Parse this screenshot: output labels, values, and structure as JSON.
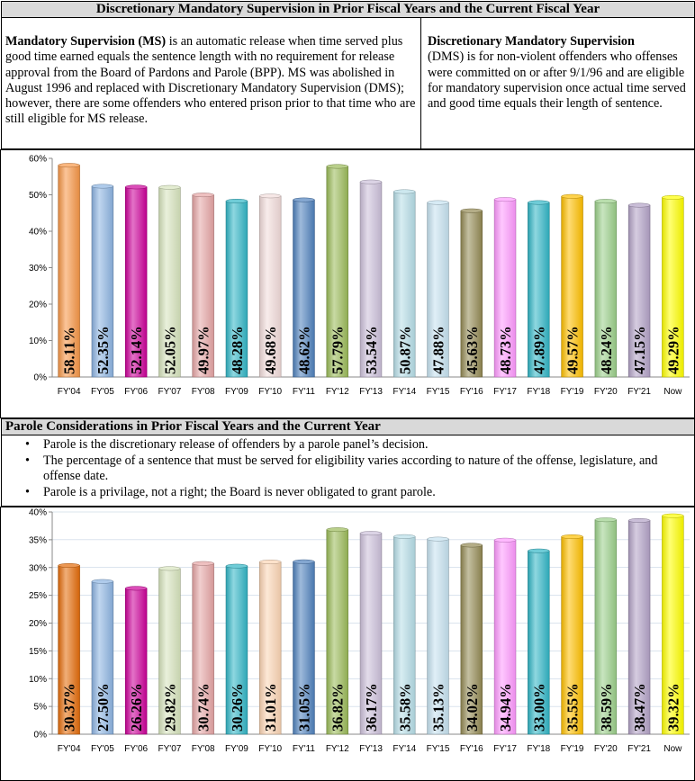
{
  "dms_section": {
    "title": "Discretionary Mandatory Supervision in Prior Fiscal Years and the Current Fiscal Year",
    "ms_term": "Mandatory Supervision (MS)",
    "ms_text": " is an automatic release when time served plus good time earned equals the sentence length with no requirement for release approval from the Board of Pardons and Parole (BPP).  MS was abolished in August 1996 and replaced with Discretionary Mandatory Supervision (DMS); however, there are some offenders who entered prison prior to that time who are still eligible for MS release.",
    "dms_term": "Discretionary Mandatory Supervision",
    "dms_text": "(DMS) is for non-violent offenders who offenses were committed on or after 9/1/96 and are eligible for mandatory supervision once actual time served and good time equals their length of sentence."
  },
  "parole_section": {
    "title": "Parole Considerations in Prior Fiscal Years and the Current Year",
    "bullets": [
      "Parole is the discretionary release of offenders by a parole panel’s decision.",
      "The percentage of a sentence that must be served for eligibility varies according to nature of the offense, legislature, and offense date.",
      "Parole is a privilage, not a right; the Board is never obligated to grant parole."
    ]
  },
  "chart_data": [
    {
      "type": "bar",
      "categories": [
        "FY'04",
        "FY'05",
        "FY'06",
        "FY'07",
        "FY'08",
        "FY'09",
        "FY'10",
        "FY'11",
        "FY'12",
        "FY'13",
        "FY'14",
        "FY'15",
        "FY'16",
        "FY'17",
        "FY'18",
        "FY'19",
        "FY'20",
        "FY'21",
        "Now"
      ],
      "values": [
        58.11,
        52.35,
        52.14,
        52.05,
        49.97,
        48.28,
        49.68,
        48.62,
        57.79,
        53.54,
        50.87,
        47.88,
        45.63,
        48.73,
        47.89,
        49.57,
        48.24,
        47.15,
        49.29
      ],
      "data_labels": [
        "58.11%",
        "52.35%",
        "52.14%",
        "52.05%",
        "49.97%",
        "48.28%",
        "49.68%",
        "48.62%",
        "57.79%",
        "53.54%",
        "50.87%",
        "47.88%",
        "45.63%",
        "48.73%",
        "47.89%",
        "49.57%",
        "48.24%",
        "47.15%",
        "49.29%"
      ],
      "y_ticks": [
        "0%",
        "10%",
        "20%",
        "30%",
        "40%",
        "50%",
        "60%"
      ],
      "ylim": [
        0,
        60
      ],
      "y_step": 10,
      "grid": false,
      "colors": [
        "#f79646",
        "#8db4e2",
        "#cc0099",
        "#d7e4bd",
        "#e6a5a5",
        "#31b6c6",
        "#f2dcdb",
        "#4f81bd",
        "#9bbb59",
        "#ccc0da",
        "#b7dee8",
        "#c6e2f0",
        "#948a54",
        "#ff99ff",
        "#31b6c6",
        "#ffc000",
        "#9bd08a",
        "#b3a2c7",
        "#ffff00"
      ]
    },
    {
      "type": "bar",
      "categories": [
        "FY'04",
        "FY'05",
        "FY'06",
        "FY'07",
        "FY'08",
        "FY'09",
        "FY'10",
        "FY'11",
        "FY'12",
        "FY'13",
        "FY'14",
        "FY'15",
        "FY'16",
        "FY'17",
        "FY'18",
        "FY'19",
        "FY'20",
        "FY'21",
        "Now"
      ],
      "values": [
        30.37,
        27.5,
        26.26,
        29.82,
        30.74,
        30.26,
        31.01,
        31.05,
        36.82,
        36.17,
        35.58,
        35.13,
        34.02,
        34.94,
        33.0,
        35.55,
        38.59,
        38.47,
        39.32
      ],
      "data_labels": [
        "30.37%",
        "27.50%",
        "26.26%",
        "29.82%",
        "30.74%",
        "30.26%",
        "31.01%",
        "31.05%",
        "36.82%",
        "36.17%",
        "35.58%",
        "35.13%",
        "34.02%",
        "34.94%",
        "33.00%",
        "35.55%",
        "38.59%",
        "38.47%",
        "39.32%"
      ],
      "y_ticks": [
        "0%",
        "5%",
        "10%",
        "15%",
        "20%",
        "25%",
        "30%",
        "35%",
        "40%"
      ],
      "ylim": [
        0,
        40
      ],
      "y_step": 5,
      "grid": true,
      "colors": [
        "#e46c0a",
        "#8db4e2",
        "#cc0099",
        "#d7e4bd",
        "#e6a5a5",
        "#31b6c6",
        "#fcd5b4",
        "#4f81bd",
        "#9bbb59",
        "#ccc0da",
        "#b7dee8",
        "#c6e2f0",
        "#948a54",
        "#ff99ff",
        "#31b6c6",
        "#ffc000",
        "#9bd08a",
        "#b3a2c7",
        "#ffff00"
      ]
    }
  ]
}
